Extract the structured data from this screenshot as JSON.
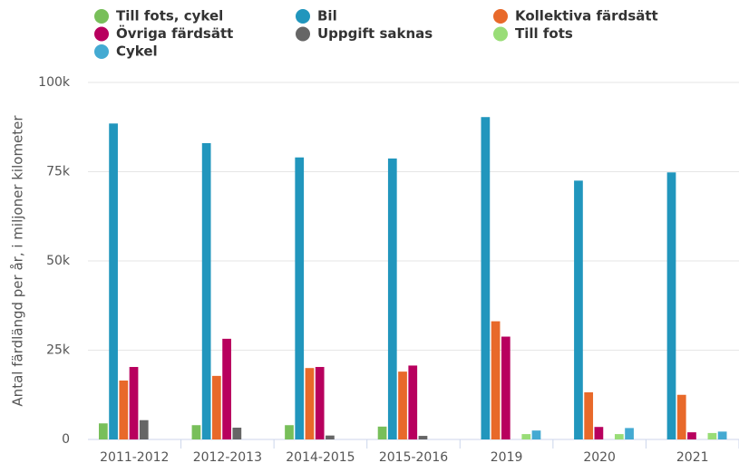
{
  "chart_data": {
    "type": "bar",
    "y_label": "Antal färdlängd per år, i miljoner kilometer",
    "categories": [
      "2011-2012",
      "2012-2013",
      "2014-2015",
      "2015-2016",
      "2019",
      "2020",
      "2021"
    ],
    "series": [
      {
        "name": "Till fots, cykel",
        "color": "#78bf5a",
        "values": [
          4500,
          4000,
          4000,
          3600,
          null,
          null,
          null
        ]
      },
      {
        "name": "Bil",
        "color": "#2196bd",
        "values": [
          88500,
          83000,
          79000,
          78700,
          90300,
          72500,
          74800
        ]
      },
      {
        "name": "Kollektiva färdsätt",
        "color": "#e8692a",
        "values": [
          16500,
          17800,
          20000,
          19000,
          33100,
          13200,
          12500
        ]
      },
      {
        "name": "Övriga färdsätt",
        "color": "#b8005e",
        "values": [
          20300,
          28200,
          20300,
          20700,
          28800,
          3500,
          2000
        ]
      },
      {
        "name": "Uppgift saknas",
        "color": "#666666",
        "values": [
          5400,
          3300,
          1100,
          1000,
          null,
          null,
          null
        ]
      },
      {
        "name": "Till fots",
        "color": "#99dd77",
        "values": [
          null,
          null,
          null,
          null,
          1500,
          1500,
          1800
        ]
      },
      {
        "name": "Cykel",
        "color": "#44aad2",
        "values": [
          null,
          null,
          null,
          null,
          2500,
          3200,
          2200
        ]
      }
    ],
    "ylim": [
      0,
      100000
    ],
    "yticks": [
      0,
      {
        "value": 25000,
        "label": "25k"
      },
      {
        "value": 50000,
        "label": "50k"
      },
      {
        "value": 75000,
        "label": "75k"
      },
      {
        "value": 100000,
        "label": "100k"
      }
    ],
    "grid": true,
    "legend": "top"
  }
}
